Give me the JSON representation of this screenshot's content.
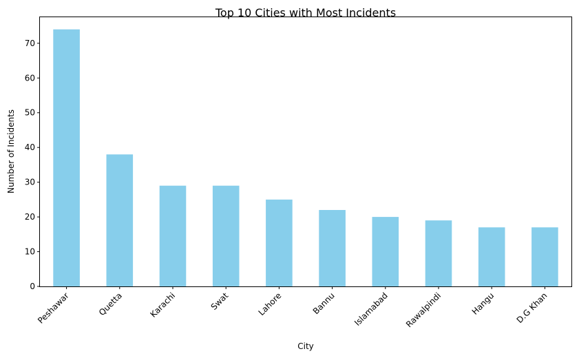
{
  "chart_data": {
    "type": "bar",
    "title": "Top 10 Cities with Most Incidents",
    "xlabel": "City",
    "ylabel": "Number of Incidents",
    "categories": [
      "Peshawar",
      "Quetta",
      "Karachi",
      "Swat",
      "Lahore",
      "Bannu",
      "Islamabad",
      "Rawalpindi",
      "Hangu",
      "D.G Khan"
    ],
    "values": [
      74,
      38,
      29,
      29,
      25,
      22,
      20,
      19,
      17,
      17
    ],
    "ylim": [
      0,
      77.7
    ],
    "yticks": [
      0,
      10,
      20,
      30,
      40,
      50,
      60,
      70
    ],
    "bar_color": "#87ceeb",
    "grid": false,
    "legend": "none"
  }
}
